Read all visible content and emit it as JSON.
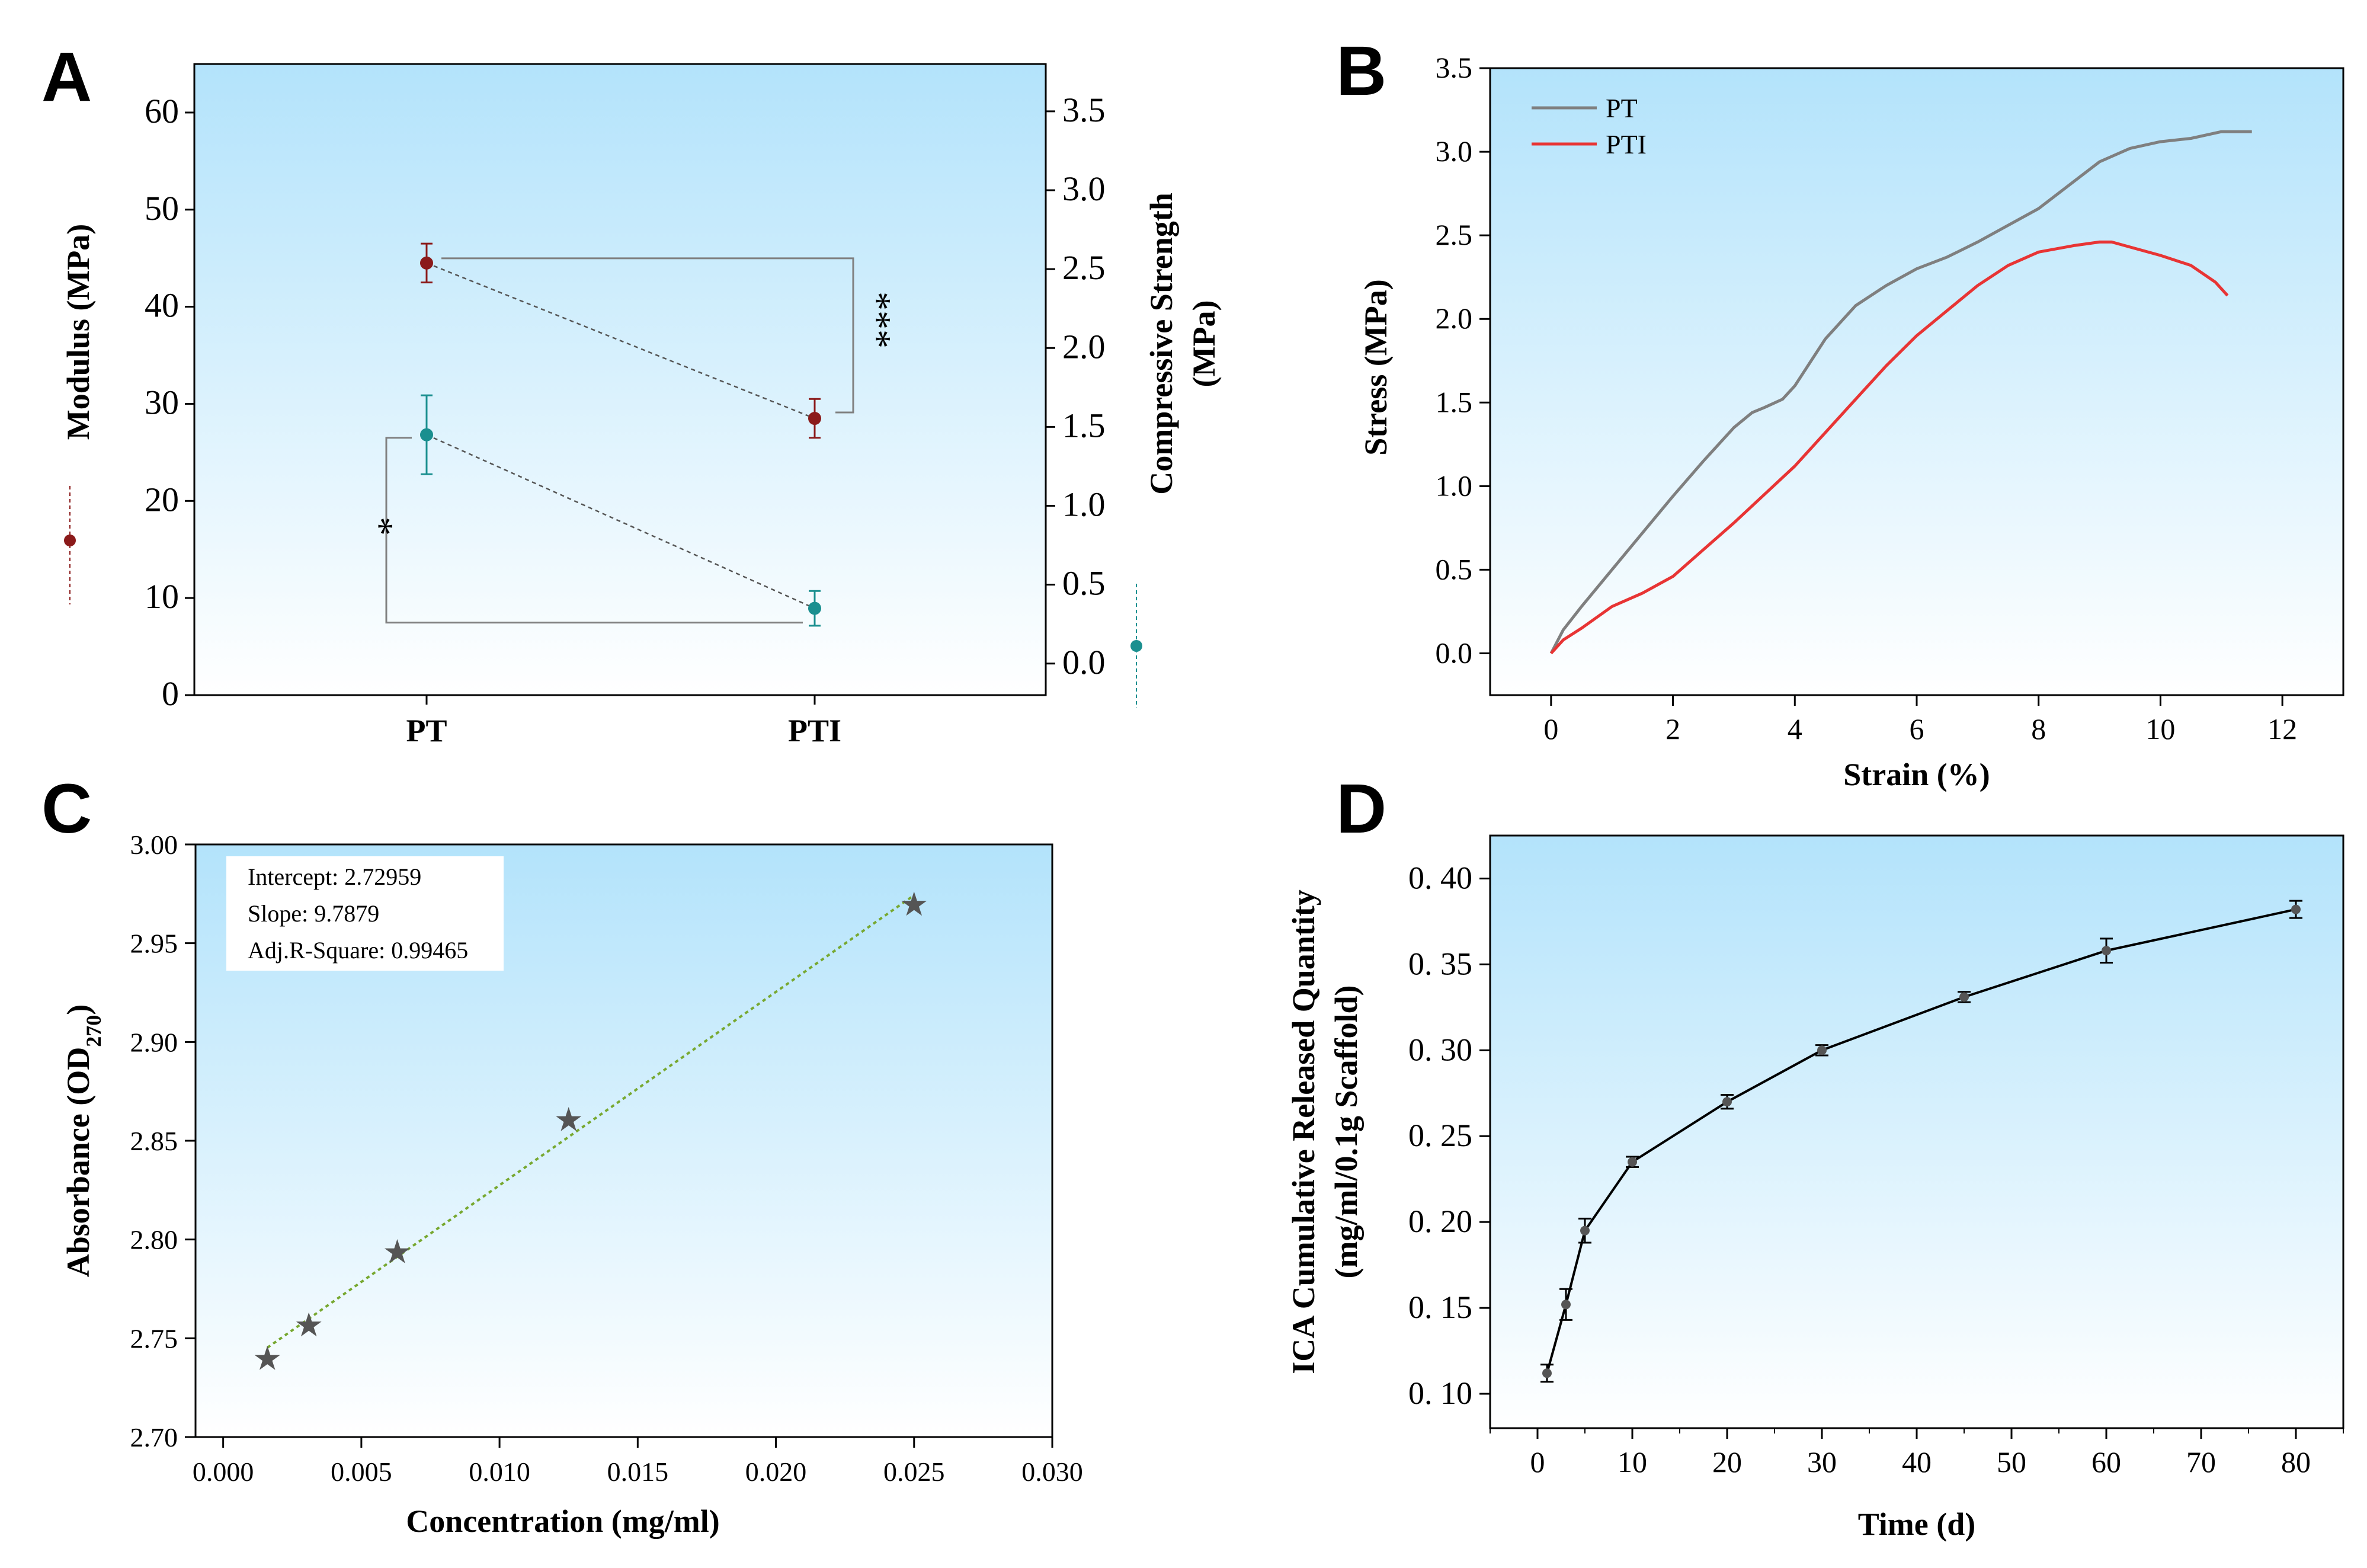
{
  "colors": {
    "bg_top": "#b3e3fb",
    "bg_bottom": "#ffffff",
    "modulus": "#8b1a1a",
    "strength": "#1a8f8f",
    "pt": "#7f7f7f",
    "pti": "#e83434",
    "fit": "#77a830",
    "marker": "#555555",
    "axis": "#000000",
    "bracket": "#808080"
  },
  "chart_data": [
    {
      "panel": "A",
      "type": "scatter",
      "categories": [
        "PT",
        "PTI"
      ],
      "ylabel": "Modulus (MPa)",
      "ylim": [
        0,
        65
      ],
      "yticks": [
        "0",
        "10",
        "20",
        "30",
        "40",
        "50",
        "60"
      ],
      "y2label_line1": "Compressive Strength",
      "y2label_line2": "(MPa)",
      "y2lim": [
        -0.2,
        3.8
      ],
      "y2ticks": [
        "0.0",
        "0.5",
        "1.0",
        "1.5",
        "2.0",
        "2.5",
        "3.0",
        "3.5"
      ],
      "series": [
        {
          "name": "Modulus",
          "axis": "left",
          "values": [
            44.5,
            28.5
          ],
          "errors": [
            2.0,
            2.0
          ]
        },
        {
          "name": "Compressive Strength",
          "axis": "right",
          "values": [
            1.45,
            0.35
          ],
          "errors": [
            0.25,
            0.11
          ]
        }
      ],
      "annotations": [
        "***",
        "*"
      ]
    },
    {
      "panel": "B",
      "type": "line",
      "xlabel": "Strain (%)",
      "ylabel": "Stress (MPa)",
      "xlim": [
        -1,
        13
      ],
      "ylim": [
        -0.25,
        3.5
      ],
      "xticks": [
        "0",
        "2",
        "4",
        "6",
        "8",
        "10",
        "12"
      ],
      "yticks": [
        "0.0",
        "0.5",
        "1.0",
        "1.5",
        "2.0",
        "2.5",
        "3.0",
        "3.5"
      ],
      "legend_position": "top-left",
      "series": [
        {
          "name": "PT",
          "x": [
            0,
            0.2,
            0.5,
            1.0,
            1.5,
            2.0,
            2.5,
            3.0,
            3.3,
            3.5,
            3.8,
            4.0,
            4.5,
            5.0,
            5.5,
            6.0,
            6.5,
            7.0,
            7.5,
            8.0,
            8.5,
            9.0,
            9.5,
            10.0,
            10.5,
            11.0,
            11.5
          ],
          "y": [
            0,
            0.14,
            0.28,
            0.5,
            0.72,
            0.94,
            1.15,
            1.35,
            1.44,
            1.47,
            1.52,
            1.6,
            1.88,
            2.08,
            2.2,
            2.3,
            2.37,
            2.46,
            2.56,
            2.66,
            2.8,
            2.94,
            3.02,
            3.06,
            3.08,
            3.12,
            3.12
          ]
        },
        {
          "name": "PTI",
          "x": [
            0,
            0.2,
            0.5,
            1.0,
            1.5,
            2.0,
            2.5,
            3.0,
            3.5,
            4.0,
            4.5,
            5.0,
            5.5,
            6.0,
            6.5,
            7.0,
            7.5,
            8.0,
            8.3,
            8.6,
            9.0,
            9.2,
            9.5,
            10.0,
            10.5,
            10.9,
            11.1
          ],
          "y": [
            0,
            0.08,
            0.15,
            0.28,
            0.36,
            0.46,
            0.62,
            0.78,
            0.95,
            1.12,
            1.32,
            1.52,
            1.72,
            1.9,
            2.05,
            2.2,
            2.32,
            2.4,
            2.42,
            2.44,
            2.46,
            2.46,
            2.43,
            2.38,
            2.32,
            2.22,
            2.14
          ]
        }
      ]
    },
    {
      "panel": "C",
      "type": "scatter",
      "xlabel": "Concentration (mg/ml)",
      "ylabel_main": "Absorbance (OD",
      "ylabel_sub": "270",
      "ylabel_end": ")",
      "xlim": [
        -0.001,
        0.03
      ],
      "ylim": [
        2.7,
        3.0
      ],
      "xticks": [
        "0.000",
        "0.005",
        "0.010",
        "0.015",
        "0.020",
        "0.025",
        "0.030"
      ],
      "yticks": [
        "2.70",
        "2.75",
        "2.80",
        "2.85",
        "2.90",
        "2.95",
        "3.00"
      ],
      "x": [
        0.0016,
        0.0031,
        0.0063,
        0.0125,
        0.025
      ],
      "y": [
        2.74,
        2.757,
        2.794,
        2.861,
        2.97
      ],
      "fit_x": [
        0.0016,
        0.025
      ],
      "fit": {
        "intercept": "Intercept: 2.72959",
        "slope": "Slope: 9.7879",
        "r2": "Adj.R-Square: 0.99465"
      }
    },
    {
      "panel": "D",
      "type": "line",
      "xlabel": "Time (d)",
      "ylabel_line1": "ICA Cumulative Released Quantity",
      "ylabel_line2": "(mg/ml/0.1g Scaffold)",
      "xlim": [
        -5,
        85
      ],
      "ylim": [
        0.08,
        0.425
      ],
      "xticks": [
        "0",
        "10",
        "20",
        "30",
        "40",
        "50",
        "60",
        "70",
        "80"
      ],
      "yticks": [
        "0. 10",
        "0. 15",
        "0. 20",
        "0. 25",
        "0. 30",
        "0. 35",
        "0. 40"
      ],
      "x": [
        1,
        3,
        5,
        10,
        20,
        30,
        45,
        60,
        80
      ],
      "y": [
        0.112,
        0.152,
        0.195,
        0.235,
        0.27,
        0.3,
        0.331,
        0.358,
        0.382
      ],
      "errors": [
        0.005,
        0.009,
        0.007,
        0.003,
        0.004,
        0.003,
        0.003,
        0.007,
        0.005
      ]
    }
  ]
}
